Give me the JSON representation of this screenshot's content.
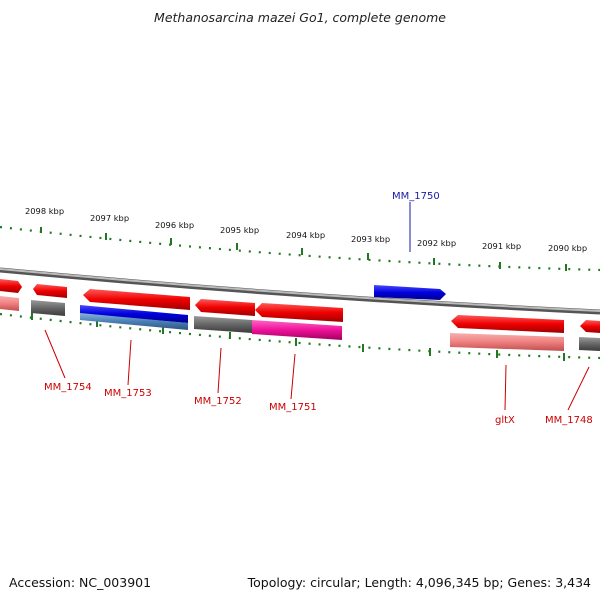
{
  "title": "Methanosarcina mazei Go1, complete genome",
  "footer": {
    "accession": "Accession: NC_003901",
    "summary": "Topology: circular; Length: 4,096,345 bp; Genes: 3,434"
  },
  "ticks": [
    {
      "label": "2098 kbp"
    },
    {
      "label": "2097 kbp"
    },
    {
      "label": "2096 kbp"
    },
    {
      "label": "2095 kbp"
    },
    {
      "label": "2094 kbp"
    },
    {
      "label": "2093 kbp"
    },
    {
      "label": "2092 kbp"
    },
    {
      "label": "2091 kbp"
    },
    {
      "label": "2090 kbp"
    }
  ],
  "gene_labels": [
    {
      "name": "MM_1750",
      "color": "#1a1aaa"
    },
    {
      "name": "MM_1754",
      "color": "#cc0000"
    },
    {
      "name": "MM_1753",
      "color": "#cc0000"
    },
    {
      "name": "MM_1752",
      "color": "#cc0000"
    },
    {
      "name": "MM_1751",
      "color": "#cc0000"
    },
    {
      "name": "gltX",
      "color": "#cc0000"
    },
    {
      "name": "MM_1748",
      "color": "#cc0000"
    }
  ],
  "colors": {
    "cds_red": "#ee0000",
    "cds_blue": "#0000dd",
    "gene_pink": "#f08080",
    "gene_gray": "#666666",
    "gene_magenta": "#ee1199",
    "gene_steel": "#4a7fb5",
    "tick_green": "#227722",
    "backbone": "#888888"
  }
}
